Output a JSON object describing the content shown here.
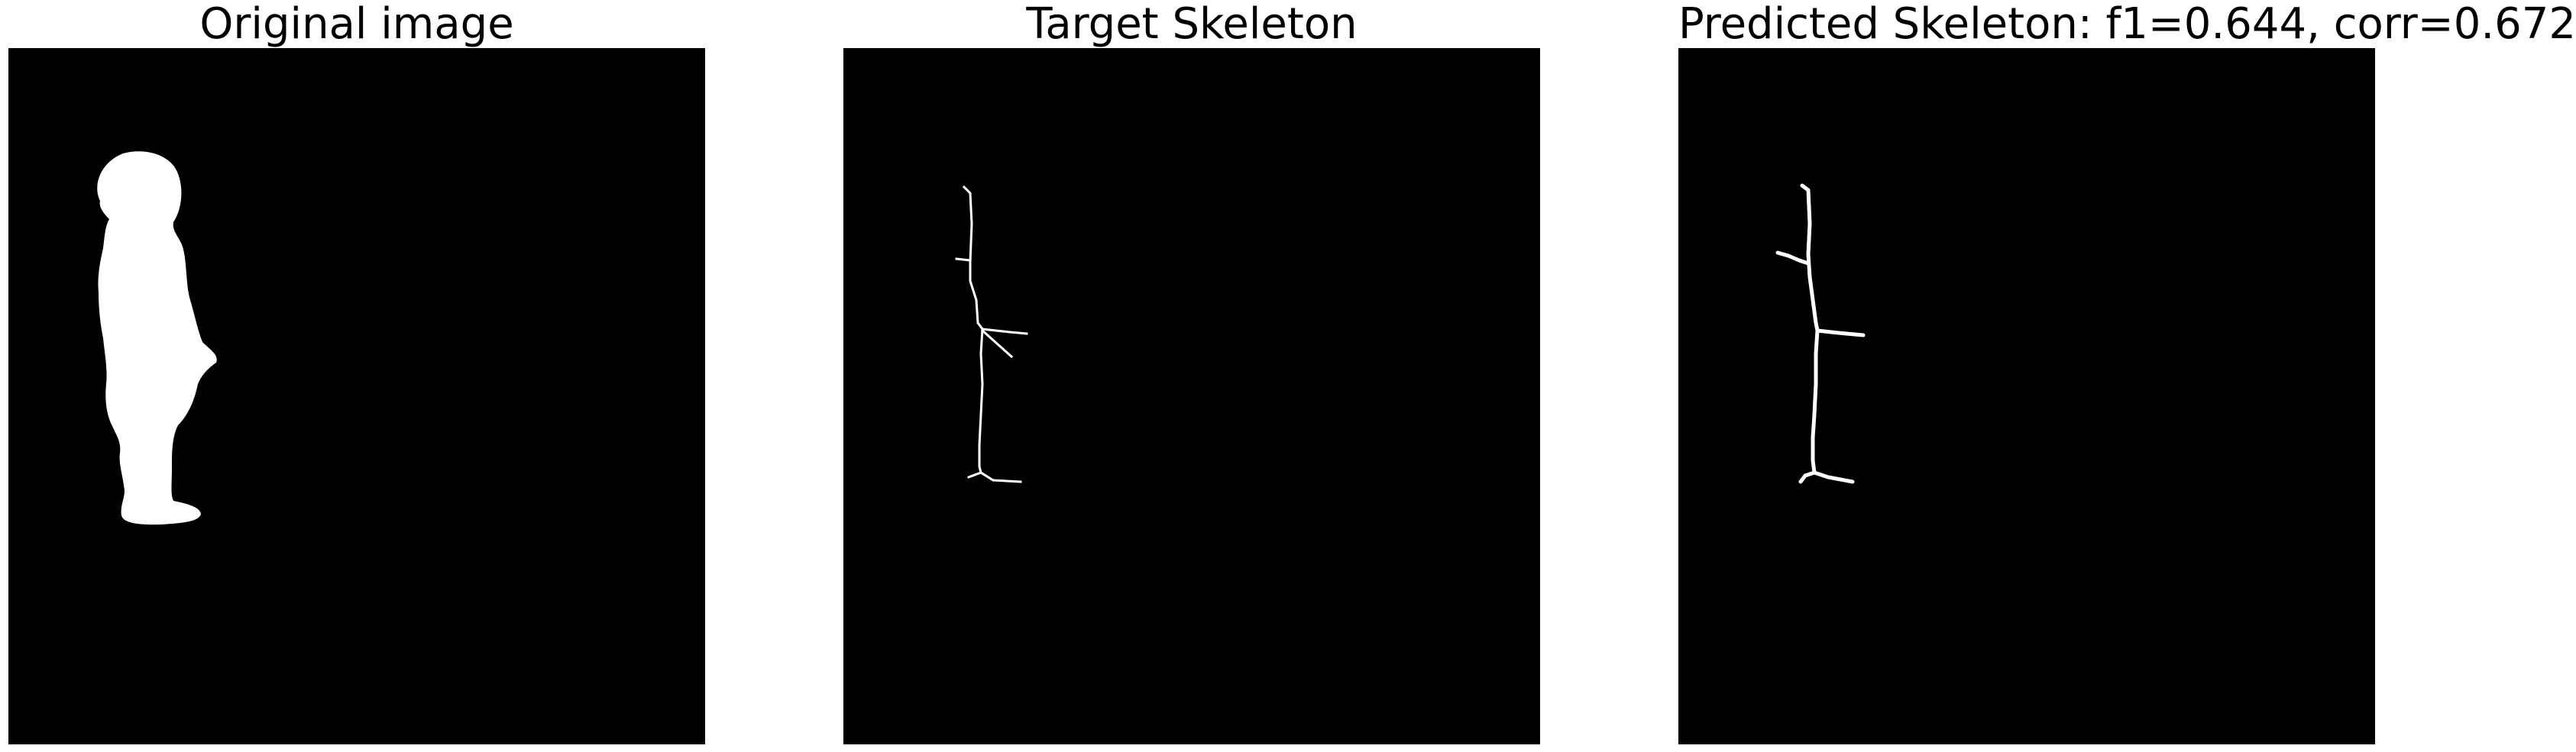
{
  "panels": [
    {
      "title": "Original image",
      "content": "silhouette"
    },
    {
      "title": "Target Skeleton",
      "content": "thin-skeleton"
    },
    {
      "title": "Predicted Skeleton: f1=0.644, corr=0.672",
      "content": "thick-skeleton"
    }
  ],
  "colors": {
    "background": "#ffffff",
    "panel_fill": "#000000",
    "foreground": "#ffffff",
    "title_text": "#000000"
  }
}
